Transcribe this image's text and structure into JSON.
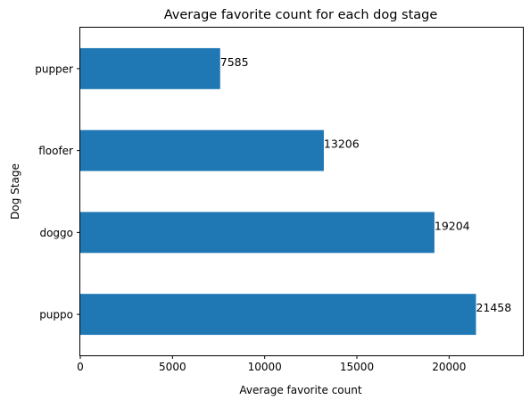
{
  "chart_data": {
    "type": "bar",
    "orientation": "horizontal",
    "title": "Average favorite count for each dog stage",
    "xlabel": "Average favorite count",
    "ylabel": "Dog Stage",
    "categories": [
      "puppo",
      "doggo",
      "floofer",
      "pupper"
    ],
    "values": [
      21458,
      19204,
      13206,
      7585
    ],
    "value_labels": [
      "21458",
      "19204",
      "13206",
      "7585"
    ],
    "xlim": [
      0,
      24000
    ],
    "xticks": [
      0,
      5000,
      10000,
      15000,
      20000
    ],
    "xtick_labels": [
      "0",
      "5000",
      "10000",
      "15000",
      "20000"
    ],
    "bar_color": "#1f77b4",
    "grid": false,
    "legend": "none"
  }
}
